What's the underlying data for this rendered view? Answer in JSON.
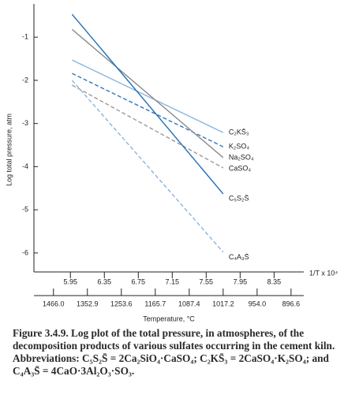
{
  "chart_data": {
    "type": "line",
    "y_label": "Log total pressure, atm",
    "x_label": "1/T x 10⁴",
    "x2_label": "Temperature, °C",
    "x": [
      5.97,
      7.75
    ],
    "series": [
      {
        "name": "C₂KS̄₃",
        "color": "#8ab4dc",
        "style": "solid",
        "values": [
          -1.53,
          -3.21
        ]
      },
      {
        "name": "K₂SO₄",
        "color": "#2b78c2",
        "style": "dashed",
        "values": [
          -1.84,
          -3.54
        ]
      },
      {
        "name": "Na₂SO₄",
        "color": "#8c8c8c",
        "style": "solid",
        "values": [
          -0.82,
          -3.79
        ]
      },
      {
        "name": "CaSO₄",
        "color": "#9a9a9a",
        "style": "dashed",
        "values": [
          -2.11,
          -4.03
        ]
      },
      {
        "name": "C₅S₂S̄",
        "color": "#1f6fb8",
        "style": "solid",
        "values": [
          -0.47,
          -4.63
        ]
      },
      {
        "name": "C₄A₃S̄",
        "color": "#8ab4dc",
        "style": "dashed",
        "values": [
          -2.0,
          -5.98
        ]
      }
    ],
    "xlim": [
      5.52,
      8.7
    ],
    "ylim": [
      -6.44,
      -0.23
    ],
    "xticks": [
      5.95,
      6.35,
      6.75,
      7.15,
      7.55,
      7.95,
      8.35
    ],
    "yticks": [
      -1,
      -2,
      -3,
      -4,
      -5,
      -6
    ],
    "x2ticks": [
      {
        "value": 5.75,
        "label": "1466.0"
      },
      {
        "value": 6.15,
        "label": "1352.9"
      },
      {
        "value": 6.55,
        "label": "1253.6"
      },
      {
        "value": 6.95,
        "label": "1165.7"
      },
      {
        "value": 7.35,
        "label": "1087.4"
      },
      {
        "value": 7.75,
        "label": "1017.2"
      },
      {
        "value": 8.15,
        "label": "954.0"
      },
      {
        "value": 8.55,
        "label": "896.6"
      }
    ],
    "grid": false,
    "caption": "Figure 3.4.9. Log plot of the total pressure, in atmospheres, of the decomposition products of various sulfates occurring in the cement kiln. Abbreviations: C₅S₂S̄ = 2Ca₂SiO₄·CaSO₄; C₂KS̄₃ = 2CaSO₄·K₂SO₄; and C₄A₃S̄ = 4CaO·3Al₂O₃·SO₃."
  }
}
